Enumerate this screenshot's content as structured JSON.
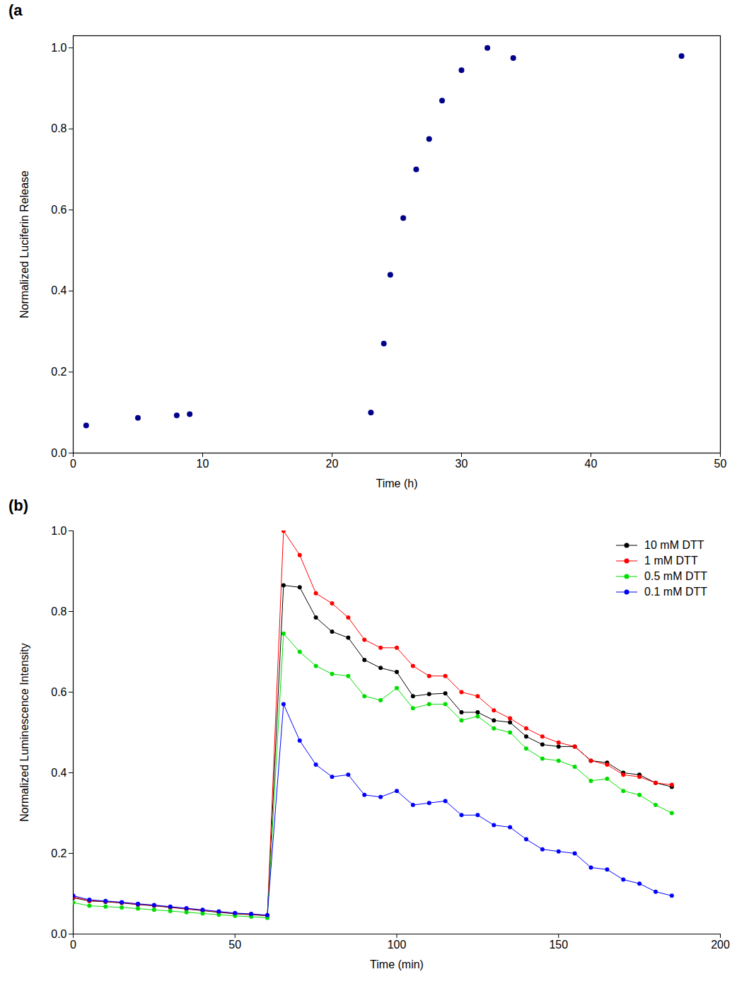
{
  "chart_data": [
    {
      "type": "scatter",
      "title": "(a",
      "x_label": "Time (h)",
      "y_label": "Normalized Luciferin Release",
      "x": [
        1,
        5,
        8,
        9,
        23,
        24,
        24.5,
        25.5,
        26.5,
        27.5,
        28.5,
        30,
        32,
        34,
        47
      ],
      "values": [
        0.068,
        0.087,
        0.093,
        0.096,
        0.1,
        0.27,
        0.44,
        0.58,
        0.7,
        0.775,
        0.87,
        0.945,
        1.0,
        0.975,
        0.98
      ],
      "color": "#00008b",
      "marker": "circle",
      "xlim": [
        0,
        50
      ],
      "xticks": [
        0,
        10,
        20,
        30,
        40,
        50
      ],
      "ylim": [
        0,
        1.03
      ],
      "yticks": [
        {
          "value": 0,
          "label": "0.0"
        },
        0.2,
        0.4,
        0.6,
        0.8,
        {
          "value": 1,
          "label": "1.0"
        }
      ]
    },
    {
      "type": "line",
      "title": "(b)",
      "x_label": "Time (min)",
      "y_label": "Normalized Luminescence Intensity",
      "x": [
        0,
        5,
        10,
        15,
        20,
        25,
        30,
        35,
        40,
        45,
        50,
        55,
        60,
        65,
        70,
        75,
        80,
        85,
        90,
        95,
        100,
        105,
        110,
        115,
        120,
        125,
        130,
        135,
        140,
        145,
        150,
        155,
        160,
        165,
        170,
        175,
        180,
        185
      ],
      "series": [
        {
          "name": "10 mM DTT",
          "color": "#000000",
          "marker": "circle",
          "values": [
            0.09,
            0.082,
            0.08,
            0.077,
            0.073,
            0.07,
            0.066,
            0.062,
            0.058,
            0.054,
            0.05,
            0.048,
            0.045,
            0.865,
            0.86,
            0.785,
            0.75,
            0.735,
            0.68,
            0.66,
            0.65,
            0.59,
            0.595,
            0.597,
            0.55,
            0.55,
            0.53,
            0.525,
            0.49,
            0.47,
            0.465,
            0.465,
            0.43,
            0.425,
            0.4,
            0.395,
            0.375,
            0.365
          ]
        },
        {
          "name": "1 mM DTT",
          "color": "#ff0000",
          "marker": "circle",
          "values": [
            0.092,
            0.083,
            0.081,
            0.078,
            0.074,
            0.071,
            0.067,
            0.063,
            0.059,
            0.055,
            0.051,
            0.049,
            0.046,
            1.0,
            0.94,
            0.845,
            0.82,
            0.785,
            0.73,
            0.71,
            0.71,
            0.665,
            0.64,
            0.64,
            0.6,
            0.59,
            0.555,
            0.535,
            0.51,
            0.49,
            0.475,
            0.465,
            0.43,
            0.42,
            0.395,
            0.39,
            0.375,
            0.37
          ]
        },
        {
          "name": "0.5 mM DTT",
          "color": "#00dd00",
          "marker": "circle",
          "values": [
            0.078,
            0.07,
            0.068,
            0.066,
            0.063,
            0.06,
            0.057,
            0.054,
            0.051,
            0.048,
            0.045,
            0.043,
            0.04,
            0.745,
            0.7,
            0.665,
            0.645,
            0.64,
            0.59,
            0.58,
            0.61,
            0.56,
            0.57,
            0.57,
            0.53,
            0.54,
            0.51,
            0.5,
            0.46,
            0.435,
            0.43,
            0.415,
            0.38,
            0.385,
            0.355,
            0.345,
            0.32,
            0.3
          ]
        },
        {
          "name": "0.1 mM DTT",
          "color": "#0000ff",
          "marker": "circle",
          "values": [
            0.095,
            0.085,
            0.082,
            0.079,
            0.075,
            0.072,
            0.068,
            0.064,
            0.06,
            0.056,
            0.052,
            0.05,
            0.047,
            0.57,
            0.48,
            0.42,
            0.39,
            0.395,
            0.345,
            0.34,
            0.355,
            0.32,
            0.325,
            0.33,
            0.295,
            0.295,
            0.27,
            0.265,
            0.235,
            0.21,
            0.205,
            0.2,
            0.165,
            0.16,
            0.135,
            0.125,
            0.105,
            0.095
          ]
        }
      ],
      "legend": "top-right",
      "xlim": [
        0,
        200
      ],
      "xticks": [
        0,
        50,
        100,
        150,
        200
      ],
      "ylim": [
        0,
        1.0
      ],
      "yticks": [
        {
          "value": 0,
          "label": "0.0"
        },
        0.2,
        0.4,
        0.6,
        0.8,
        {
          "value": 1,
          "label": "1.0"
        }
      ]
    }
  ]
}
